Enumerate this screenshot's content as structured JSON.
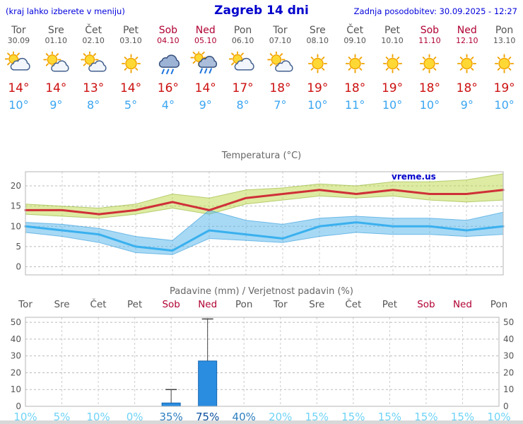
{
  "watermark": "vreme.us",
  "header": {
    "left": "(kraj lahko izberete v meniju)",
    "title": "Zagreb 14 dni",
    "updated": "Zadnja posodobitev: 30.09.2025 - 12:27"
  },
  "colors": {
    "header_blue": "#0000dd",
    "weekday": "#555555",
    "weekend": "#b00033",
    "tmax_red": "#cc1111",
    "tmin_blue": "#3aa5f0",
    "temp_line_max": "#cf3038",
    "temp_line_min": "#3ab0ee",
    "band_max_fill": "rgba(190,215,70,0.5)",
    "band_max_edge": "rgba(150,185,60,0.65)",
    "band_min_fill": "rgba(80,180,235,0.5)",
    "band_min_edge": "rgba(60,160,220,0.65)",
    "bar_fill": "#2a8de0",
    "bar_edge": "#1565b0",
    "prob_light": "#6fd3f7",
    "prob_medium": "#2e7fbf",
    "prob_dark": "#0a4f9e"
  },
  "days": [
    {
      "name": "Tor",
      "date": "30.09",
      "weekend": false,
      "icon": "mostly-cloudy",
      "tmax": "14°",
      "tmin": "10°",
      "prob": "10%",
      "prob_level": "light"
    },
    {
      "name": "Sre",
      "date": "01.10",
      "weekend": false,
      "icon": "partly-cloudy",
      "tmax": "14°",
      "tmin": "9°",
      "prob": "5%",
      "prob_level": "light"
    },
    {
      "name": "Čet",
      "date": "02.10",
      "weekend": false,
      "icon": "partly-cloudy",
      "tmax": "13°",
      "tmin": "8°",
      "prob": "10%",
      "prob_level": "light"
    },
    {
      "name": "Pet",
      "date": "03.10",
      "weekend": false,
      "icon": "sunny",
      "tmax": "14°",
      "tmin": "5°",
      "prob": "0%",
      "prob_level": "light"
    },
    {
      "name": "Sob",
      "date": "04.10",
      "weekend": true,
      "icon": "rain",
      "tmax": "16°",
      "tmin": "4°",
      "prob": "35%",
      "prob_level": "medium"
    },
    {
      "name": "Ned",
      "date": "05.10",
      "weekend": true,
      "icon": "rain-sun",
      "tmax": "14°",
      "tmin": "9°",
      "prob": "75%",
      "prob_level": "dark"
    },
    {
      "name": "Pon",
      "date": "06.10",
      "weekend": false,
      "icon": "mostly-cloudy",
      "tmax": "17°",
      "tmin": "8°",
      "prob": "40%",
      "prob_level": "medium"
    },
    {
      "name": "Tor",
      "date": "07.10",
      "weekend": false,
      "icon": "partly-cloudy",
      "tmax": "18°",
      "tmin": "7°",
      "prob": "20%",
      "prob_level": "light"
    },
    {
      "name": "Sre",
      "date": "08.10",
      "weekend": false,
      "icon": "sunny",
      "tmax": "19°",
      "tmin": "10°",
      "prob": "15%",
      "prob_level": "light"
    },
    {
      "name": "Čet",
      "date": "09.10",
      "weekend": false,
      "icon": "sunny",
      "tmax": "18°",
      "tmin": "11°",
      "prob": "15%",
      "prob_level": "light"
    },
    {
      "name": "Pet",
      "date": "10.10",
      "weekend": false,
      "icon": "sunny",
      "tmax": "19°",
      "tmin": "10°",
      "prob": "15%",
      "prob_level": "light"
    },
    {
      "name": "Sob",
      "date": "11.10",
      "weekend": true,
      "icon": "sunny",
      "tmax": "18°",
      "tmin": "10°",
      "prob": "15%",
      "prob_level": "light"
    },
    {
      "name": "Ned",
      "date": "12.10",
      "weekend": true,
      "icon": "sunny",
      "tmax": "18°",
      "tmin": "9°",
      "prob": "15%",
      "prob_level": "light"
    },
    {
      "name": "Pon",
      "date": "13.10",
      "weekend": false,
      "icon": "sunny",
      "tmax": "19°",
      "tmin": "10°",
      "prob": "10%",
      "prob_level": "light"
    }
  ],
  "chart_data": [
    {
      "type": "line",
      "title": "Temperatura (°C)",
      "xlabel": "",
      "ylabel": "°C",
      "x": [
        "Tor 30.09",
        "Sre 01.10",
        "Čet 02.10",
        "Pet 03.10",
        "Sob 04.10",
        "Ned 05.10",
        "Pon 06.10",
        "Tor 07.10",
        "Sre 08.10",
        "Čet 09.10",
        "Pet 10.10",
        "Sob 11.10",
        "Ned 12.10",
        "Pon 13.10"
      ],
      "series": [
        {
          "name": "temp_max",
          "values": [
            14,
            14,
            13,
            14,
            16,
            14,
            17,
            18,
            19,
            18,
            19,
            18,
            18,
            19
          ]
        },
        {
          "name": "temp_min",
          "values": [
            10,
            9,
            8,
            5,
            4,
            9,
            8,
            7,
            10,
            11,
            10,
            10,
            9,
            10
          ]
        },
        {
          "name": "max_band_upper",
          "values": [
            15.5,
            15,
            14.5,
            15.5,
            18,
            17,
            19,
            19.5,
            20.5,
            20,
            21,
            21,
            21.5,
            23
          ]
        },
        {
          "name": "max_band_lower",
          "values": [
            13,
            12.5,
            12,
            13,
            14.5,
            13,
            15.5,
            16.5,
            17.5,
            17,
            17.5,
            16.5,
            16,
            16.5
          ]
        },
        {
          "name": "min_band_upper",
          "values": [
            11,
            10.5,
            9.5,
            7.5,
            6.5,
            14,
            11.5,
            10.5,
            12,
            12.5,
            12,
            12,
            11.5,
            13.5
          ]
        },
        {
          "name": "min_band_lower",
          "values": [
            8.5,
            7.5,
            6,
            3.5,
            3,
            7,
            6.5,
            6,
            7.5,
            8.5,
            8,
            8,
            7.5,
            8
          ]
        }
      ],
      "ylim": [
        -2,
        23.5
      ],
      "yticks": [
        0,
        5,
        10,
        15,
        20
      ],
      "grid": true,
      "legend": "none"
    },
    {
      "type": "bar",
      "title": "Padavine (mm) / Verjetnost padavin (%)",
      "categories": [
        "Tor",
        "Sre",
        "Čet",
        "Pet",
        "Sob",
        "Ned",
        "Pon",
        "Tor",
        "Sre",
        "Čet",
        "Pet",
        "Sob",
        "Ned",
        "Pon"
      ],
      "values": [
        0,
        0,
        0,
        0,
        2,
        27,
        0,
        0,
        0,
        0,
        0,
        0,
        0,
        0
      ],
      "whisker_high": [
        0,
        0,
        0,
        0,
        10,
        52,
        0,
        0,
        0,
        0,
        0,
        0,
        0,
        0
      ],
      "probabilities_pct": [
        10,
        5,
        10,
        0,
        35,
        75,
        40,
        20,
        15,
        15,
        15,
        15,
        15,
        10
      ],
      "ylim": [
        0,
        53
      ],
      "yticks": [
        0,
        10,
        20,
        30,
        40,
        50
      ],
      "grid": true
    }
  ]
}
